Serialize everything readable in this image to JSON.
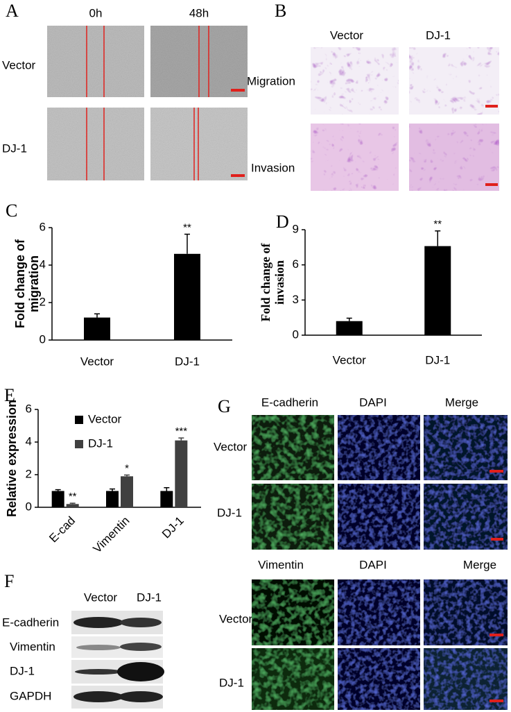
{
  "chart_data": [
    {
      "type": "bar",
      "label": "C",
      "ylabel": [
        "Fold change of",
        "migration"
      ],
      "categories": [
        "Vector",
        "DJ-1"
      ],
      "values": [
        1.2,
        4.6
      ],
      "errors": [
        0.2,
        1.05
      ],
      "color": "#000000",
      "ylim": [
        0,
        6
      ],
      "yticks": [
        0,
        2,
        4,
        6
      ],
      "annotations": [
        {
          "category": "DJ-1",
          "text": "**"
        }
      ]
    },
    {
      "type": "bar",
      "label": "D",
      "ylabel": [
        "Fold change of",
        "invasion"
      ],
      "categories": [
        "Vector",
        "DJ-1"
      ],
      "values": [
        1.2,
        7.6
      ],
      "errors": [
        0.25,
        1.3
      ],
      "color": "#000000",
      "ylim": [
        0,
        9
      ],
      "yticks": [
        0,
        3,
        6,
        9
      ],
      "annotations": [
        {
          "category": "DJ-1",
          "text": "**"
        }
      ]
    },
    {
      "type": "bar",
      "label": "E",
      "ylabel": [
        "Relative expression"
      ],
      "categories": [
        "E-cad",
        "Vimentin",
        "DJ-1"
      ],
      "series": [
        {
          "name": "Vector",
          "color": "#000000",
          "values": [
            1.0,
            1.0,
            1.0
          ],
          "errors": [
            0.08,
            0.12,
            0.2
          ]
        },
        {
          "name": "DJ-1",
          "color": "#404040",
          "values": [
            0.2,
            1.9,
            4.1
          ],
          "errors": [
            0.05,
            0.08,
            0.15
          ]
        }
      ],
      "ylim": [
        0,
        6
      ],
      "yticks": [
        0,
        2,
        4,
        6
      ],
      "legend": "upper-left",
      "annotations": [
        {
          "category": "E-cad",
          "series": "DJ-1",
          "text": "**"
        },
        {
          "category": "Vimentin",
          "series": "DJ-1",
          "text": "*"
        },
        {
          "category": "DJ-1",
          "series": "DJ-1",
          "text": "***"
        }
      ]
    }
  ],
  "panel_a": {
    "label": "A",
    "columns": [
      "0h",
      "48h"
    ],
    "rows": [
      "Vector",
      "DJ-1"
    ]
  },
  "panel_b": {
    "label": "B",
    "columns": [
      "Vector",
      "DJ-1"
    ],
    "rows": [
      "Migration",
      "Invasion"
    ]
  },
  "panel_f": {
    "label": "F",
    "columns": [
      "Vector",
      "DJ-1"
    ],
    "rows": [
      "E-cadherin",
      "Vimentin",
      "DJ-1",
      "GAPDH"
    ]
  },
  "panel_g": {
    "label": "G",
    "top": {
      "columns": [
        "E-cadherin",
        "DAPI",
        "Merge"
      ],
      "rows": [
        "Vector",
        "DJ-1"
      ]
    },
    "bottom": {
      "columns": [
        "Vimentin",
        "DAPI",
        "Merge"
      ],
      "rows": [
        "Vector",
        "DJ-1"
      ]
    }
  }
}
